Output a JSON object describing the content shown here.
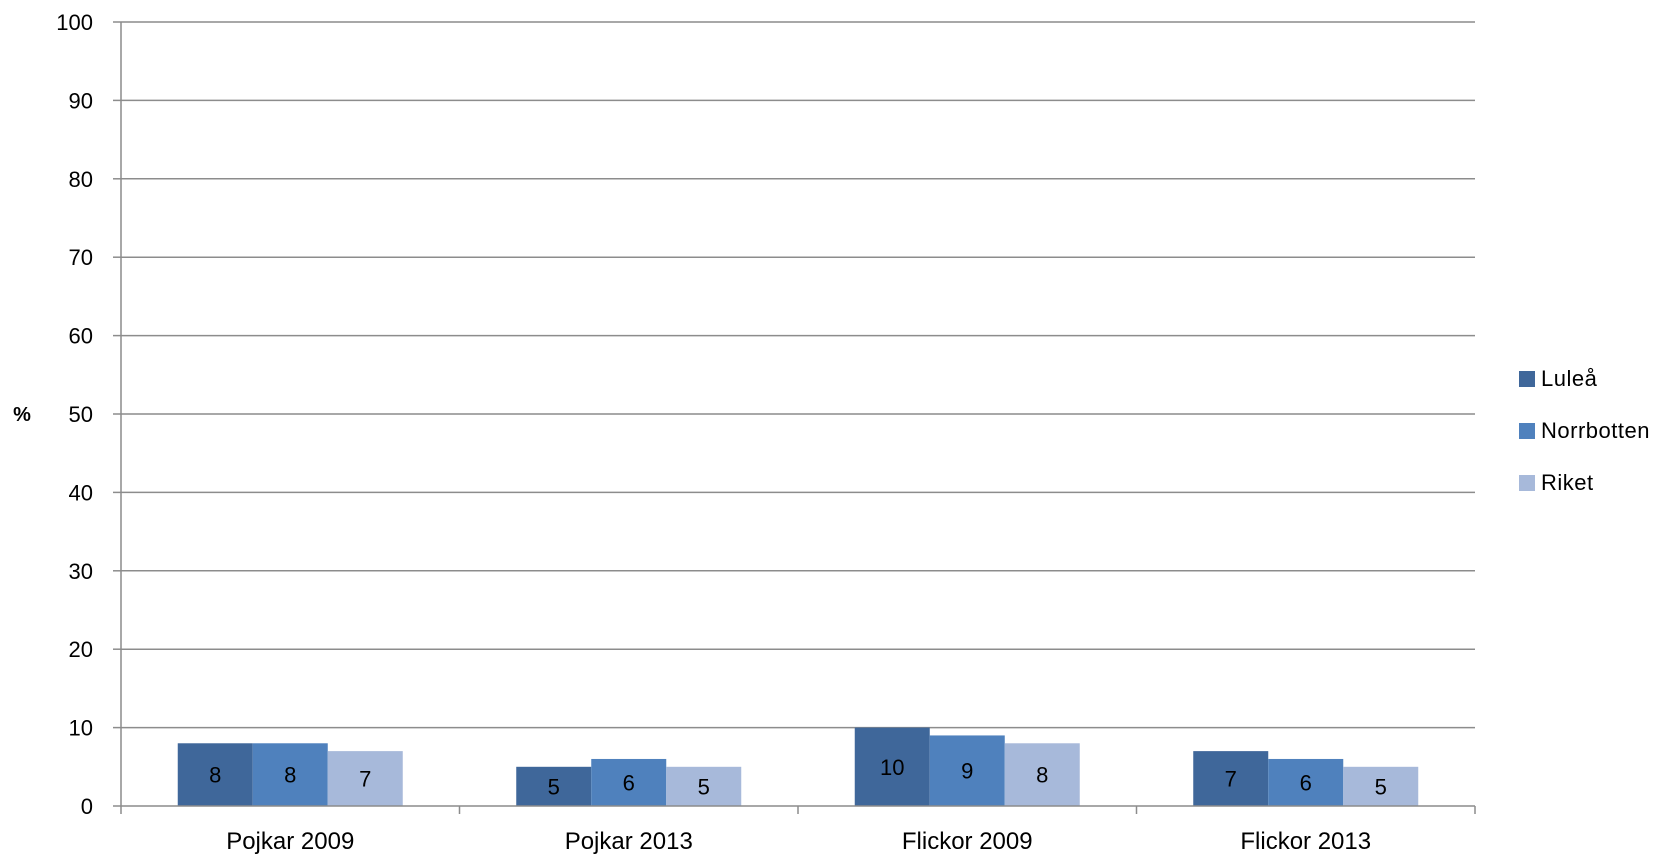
{
  "chart_data": {
    "type": "bar",
    "title": "",
    "xlabel": "",
    "ylabel": "%",
    "ylim": [
      0,
      100
    ],
    "yticks": [
      "0",
      "10",
      "20",
      "30",
      "40",
      "50",
      "60",
      "70",
      "80",
      "90",
      "100"
    ],
    "grid": true,
    "legend_position": "right",
    "categories": [
      "Pojkar 2009",
      "Pojkar 2013",
      "Flickor 2009",
      "Flickor 2013"
    ],
    "series": [
      {
        "name": "Luleå",
        "color": "#3F679A",
        "values": [
          8,
          5,
          10,
          7
        ]
      },
      {
        "name": "Norrbotten",
        "color": "#4F81BD",
        "values": [
          8,
          6,
          9,
          6
        ]
      },
      {
        "name": "Riket",
        "color": "#A7B9DA",
        "values": [
          7,
          5,
          8,
          5
        ]
      }
    ]
  }
}
